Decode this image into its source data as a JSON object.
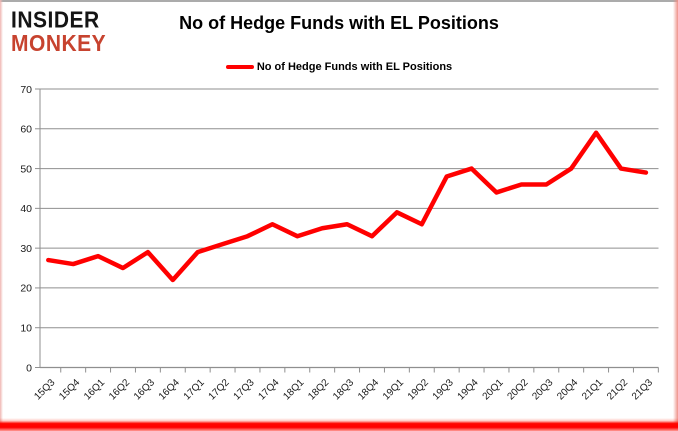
{
  "brand": {
    "line1": "INSIDER",
    "line2": "MONKEY",
    "line1_color": "#141414",
    "line2_color": "#c7432f"
  },
  "header": {
    "title": "No of Hedge Funds with EL Positions"
  },
  "legend": {
    "label": "No of Hedge Funds with EL Positions",
    "swatch_color": "#ff0000"
  },
  "colors": {
    "series_red": "#ff0000",
    "gridline": "#8f8f8f",
    "axis": "#8f8f8f",
    "tick_label": "#1a1a1a",
    "background": "#ffffff"
  },
  "chart_data": {
    "type": "line",
    "title": "No of Hedge Funds with EL Positions",
    "xlabel": "",
    "ylabel": "",
    "ylim": [
      0,
      70
    ],
    "ytick_step": 10,
    "grid": true,
    "legend_position": "top",
    "categories": [
      "15Q3",
      "15Q4",
      "16Q1",
      "16Q2",
      "16Q3",
      "16Q4",
      "17Q1",
      "17Q2",
      "17Q3",
      "17Q4",
      "18Q1",
      "18Q2",
      "18Q3",
      "18Q4",
      "19Q1",
      "19Q2",
      "19Q3",
      "19Q4",
      "20Q1",
      "20Q2",
      "20Q3",
      "20Q4",
      "21Q1",
      "21Q2",
      "21Q3"
    ],
    "series": [
      {
        "name": "No of Hedge Funds with EL Positions",
        "color": "#ff0000",
        "values": [
          27,
          26,
          28,
          25,
          29,
          22,
          29,
          31,
          33,
          36,
          33,
          35,
          36,
          33,
          39,
          36,
          48,
          50,
          44,
          46,
          46,
          50,
          59,
          50,
          49
        ]
      }
    ]
  }
}
